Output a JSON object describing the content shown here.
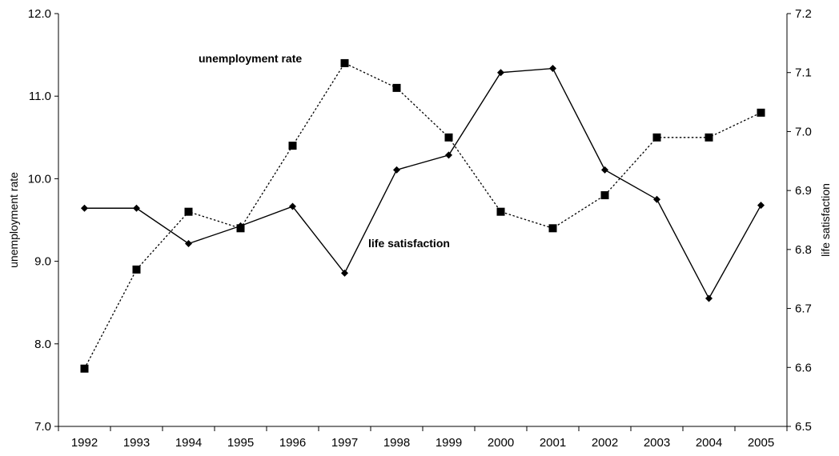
{
  "chart_data": {
    "type": "line",
    "categories": [
      "1992",
      "1993",
      "1994",
      "1995",
      "1996",
      "1997",
      "1998",
      "1999",
      "2000",
      "2001",
      "2002",
      "2003",
      "2004",
      "2005"
    ],
    "series": [
      {
        "name": "unemployment rate",
        "axis": "left",
        "style": "dotted",
        "marker": "square",
        "values": [
          7.7,
          8.9,
          9.6,
          9.4,
          10.4,
          11.4,
          11.1,
          10.5,
          9.6,
          9.4,
          9.8,
          10.5,
          10.5,
          10.8
        ]
      },
      {
        "name": "life satisfaction",
        "axis": "right",
        "style": "solid",
        "marker": "diamond",
        "values": [
          6.87,
          6.87,
          6.81,
          6.84,
          6.873,
          6.76,
          6.935,
          6.96,
          7.1,
          7.107,
          6.935,
          6.885,
          6.717,
          6.875
        ]
      }
    ],
    "ylabel_left": "unemployment rate",
    "ylabel_right": "life satisfaction",
    "ylim_left": [
      7.0,
      12.0
    ],
    "ylim_right": [
      6.5,
      7.2
    ],
    "yticks_left": [
      "7.0",
      "8.0",
      "9.0",
      "10.0",
      "11.0",
      "12.0"
    ],
    "yticks_right": [
      "6.5",
      "6.6",
      "6.7",
      "6.8",
      "6.9",
      "7.0",
      "7.1",
      "7.2"
    ],
    "annotations": [
      "unemployment rate",
      "life satisfaction"
    ],
    "grid": false,
    "colors": {
      "line": "#000000",
      "background": "#ffffff"
    }
  }
}
